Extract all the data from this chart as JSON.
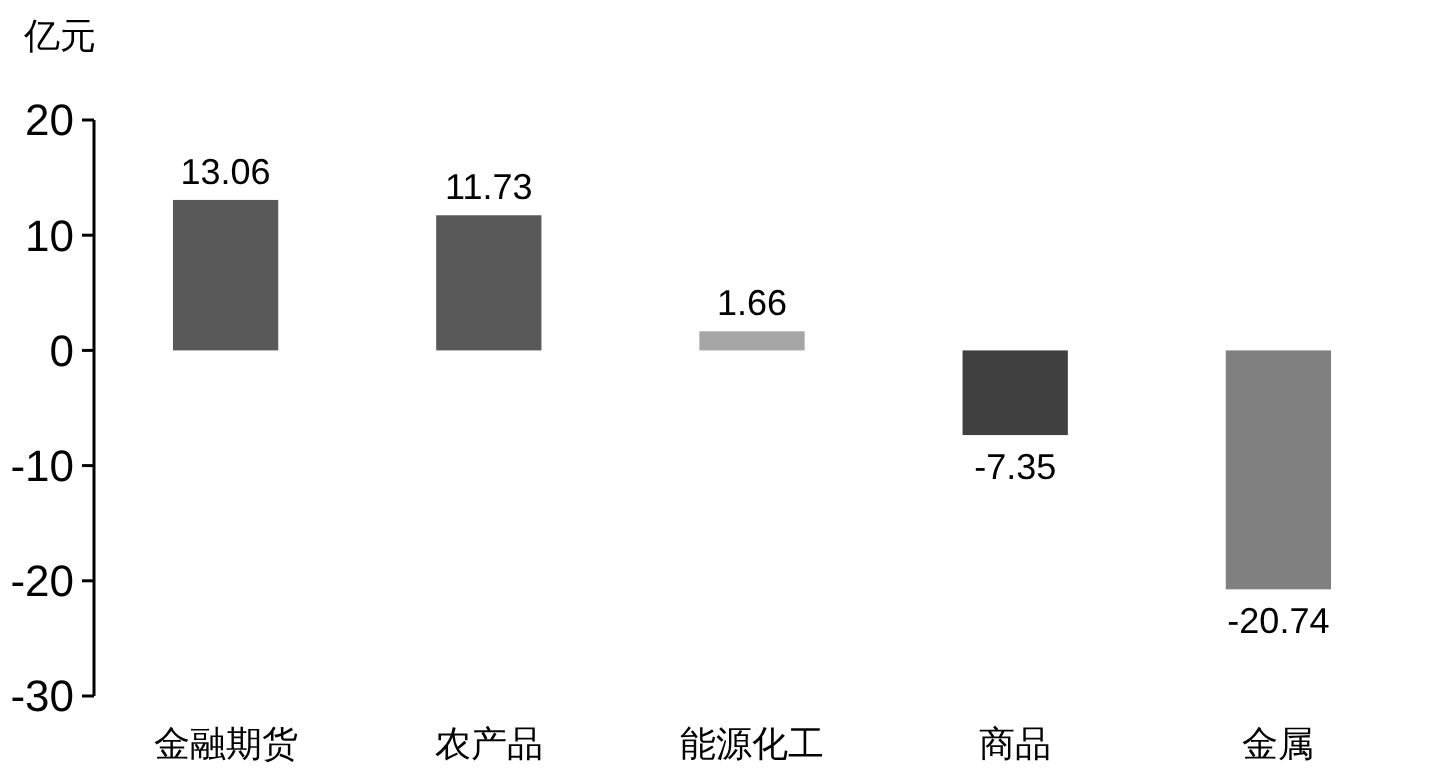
{
  "chart_data": {
    "type": "bar",
    "ylabel": "亿元",
    "categories": [
      "金融期货",
      "农产品",
      "能源化工",
      "商品",
      "金属"
    ],
    "values": [
      13.06,
      11.73,
      1.66,
      -7.35,
      -20.74
    ],
    "colors": [
      "#595959",
      "#595959",
      "#a6a6a6",
      "#404040",
      "#808080"
    ],
    "ylim": [
      -30,
      20
    ],
    "yticks": [
      -30,
      -20,
      -10,
      0,
      10,
      20
    ],
    "data_labels": true,
    "grid": false
  }
}
